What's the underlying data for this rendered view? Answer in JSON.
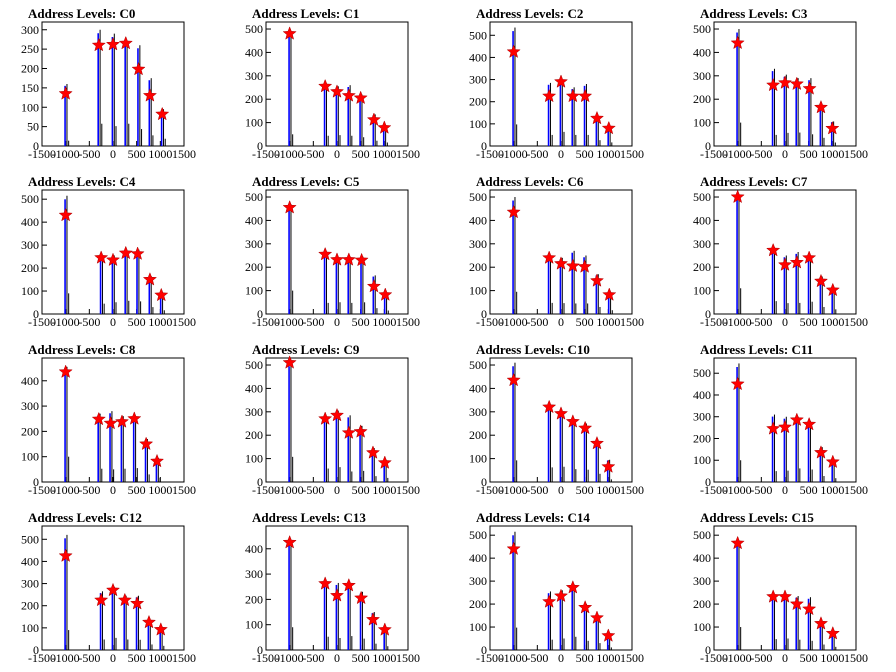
{
  "figure": {
    "xlim": [
      -1500,
      1500
    ],
    "xticks": [
      -1500,
      -1000,
      -500,
      0,
      500,
      1000,
      1500
    ],
    "xtick_labels": [
      "-1500",
      "-1000",
      "-500",
      "0",
      "500",
      "1000",
      "1500"
    ],
    "colors": {
      "marker": "#ff0000",
      "fit": "#0000ff",
      "hist": "#000000",
      "frame": "#000000"
    }
  },
  "chart_data": [
    {
      "type": "histogram",
      "title": "Address Levels: C0",
      "ylim": [
        0,
        320
      ],
      "yticks": [
        0,
        50,
        100,
        150,
        200,
        250,
        300
      ],
      "peaks": [
        {
          "x": -1000,
          "y": 135,
          "spike": 160,
          "base": 55
        },
        {
          "x": -300,
          "y": 260,
          "spike": 300,
          "base": 230
        },
        {
          "x": 0,
          "y": 262,
          "spike": 290,
          "base": 205
        },
        {
          "x": 270,
          "y": 265,
          "spike": 270,
          "base": 230
        },
        {
          "x": 540,
          "y": 198,
          "spike": 260,
          "base": 175
        },
        {
          "x": 780,
          "y": 130,
          "spike": 175,
          "base": 110
        },
        {
          "x": 1040,
          "y": 82,
          "spike": 95,
          "base": 75
        }
      ]
    },
    {
      "type": "histogram",
      "title": "Address Levels: C1",
      "ylim": [
        0,
        530
      ],
      "yticks": [
        0,
        100,
        200,
        300,
        400,
        500
      ],
      "peaks": [
        {
          "x": -1000,
          "y": 480,
          "spike": 490,
          "base": 200
        },
        {
          "x": -250,
          "y": 255,
          "spike": 260,
          "base": 175
        },
        {
          "x": 0,
          "y": 232,
          "spike": 255,
          "base": 185
        },
        {
          "x": 250,
          "y": 215,
          "spike": 260,
          "base": 175
        },
        {
          "x": 500,
          "y": 205,
          "spike": 220,
          "base": 150
        },
        {
          "x": 780,
          "y": 112,
          "spike": 135,
          "base": 90
        },
        {
          "x": 1000,
          "y": 78,
          "spike": 90,
          "base": 60
        }
      ]
    },
    {
      "type": "histogram",
      "title": "Address Levels: C2",
      "ylim": [
        0,
        560
      ],
      "yticks": [
        0,
        100,
        200,
        300,
        400,
        500
      ],
      "peaks": [
        {
          "x": -1000,
          "y": 425,
          "spike": 535,
          "base": 390
        },
        {
          "x": -250,
          "y": 225,
          "spike": 285,
          "base": 200
        },
        {
          "x": 0,
          "y": 290,
          "spike": 300,
          "base": 255
        },
        {
          "x": 250,
          "y": 225,
          "spike": 265,
          "base": 200
        },
        {
          "x": 510,
          "y": 225,
          "spike": 280,
          "base": 200
        },
        {
          "x": 760,
          "y": 125,
          "spike": 135,
          "base": 105
        },
        {
          "x": 1010,
          "y": 80,
          "spike": 90,
          "base": 65
        }
      ]
    },
    {
      "type": "histogram",
      "title": "Address Levels: C3",
      "ylim": [
        0,
        530
      ],
      "yticks": [
        0,
        100,
        200,
        300,
        400,
        500
      ],
      "peaks": [
        {
          "x": -1000,
          "y": 440,
          "spike": 500,
          "base": 400
        },
        {
          "x": -250,
          "y": 260,
          "spike": 330,
          "base": 190
        },
        {
          "x": 0,
          "y": 270,
          "spike": 305,
          "base": 225
        },
        {
          "x": 250,
          "y": 265,
          "spike": 290,
          "base": 230
        },
        {
          "x": 520,
          "y": 245,
          "spike": 290,
          "base": 200
        },
        {
          "x": 760,
          "y": 165,
          "spike": 175,
          "base": 140
        },
        {
          "x": 1000,
          "y": 75,
          "spike": 105,
          "base": 60
        }
      ]
    },
    {
      "type": "histogram",
      "title": "Address Levels: C4",
      "ylim": [
        0,
        540
      ],
      "yticks": [
        0,
        100,
        200,
        300,
        400,
        500
      ],
      "peaks": [
        {
          "x": -1000,
          "y": 430,
          "spike": 515,
          "base": 360
        },
        {
          "x": -250,
          "y": 245,
          "spike": 250,
          "base": 180
        },
        {
          "x": 0,
          "y": 235,
          "spike": 255,
          "base": 205
        },
        {
          "x": 270,
          "y": 265,
          "spike": 275,
          "base": 230
        },
        {
          "x": 520,
          "y": 262,
          "spike": 280,
          "base": 220
        },
        {
          "x": 780,
          "y": 150,
          "spike": 165,
          "base": 120
        },
        {
          "x": 1020,
          "y": 82,
          "spike": 95,
          "base": 65
        }
      ]
    },
    {
      "type": "histogram",
      "title": "Address Levels: C5",
      "ylim": [
        0,
        530
      ],
      "yticks": [
        0,
        100,
        200,
        300,
        400,
        500
      ],
      "peaks": [
        {
          "x": -1000,
          "y": 455,
          "spike": 470,
          "base": 400
        },
        {
          "x": -250,
          "y": 255,
          "spike": 260,
          "base": 190
        },
        {
          "x": 0,
          "y": 232,
          "spike": 240,
          "base": 200
        },
        {
          "x": 250,
          "y": 232,
          "spike": 245,
          "base": 190
        },
        {
          "x": 520,
          "y": 230,
          "spike": 245,
          "base": 200
        },
        {
          "x": 780,
          "y": 118,
          "spike": 165,
          "base": 100
        },
        {
          "x": 1020,
          "y": 82,
          "spike": 90,
          "base": 60
        }
      ]
    },
    {
      "type": "histogram",
      "title": "Address Levels: C6",
      "ylim": [
        0,
        530
      ],
      "yticks": [
        0,
        100,
        200,
        300,
        400,
        500
      ],
      "peaks": [
        {
          "x": -1000,
          "y": 435,
          "spike": 500,
          "base": 380
        },
        {
          "x": -250,
          "y": 240,
          "spike": 245,
          "base": 190
        },
        {
          "x": 0,
          "y": 215,
          "spike": 240,
          "base": 185
        },
        {
          "x": 250,
          "y": 205,
          "spike": 270,
          "base": 180
        },
        {
          "x": 500,
          "y": 202,
          "spike": 250,
          "base": 180
        },
        {
          "x": 760,
          "y": 142,
          "spike": 170,
          "base": 120
        },
        {
          "x": 1020,
          "y": 82,
          "spike": 95,
          "base": 65
        }
      ]
    },
    {
      "type": "histogram",
      "title": "Address Levels: C7",
      "ylim": [
        0,
        530
      ],
      "yticks": [
        0,
        100,
        200,
        300,
        400,
        500
      ],
      "peaks": [
        {
          "x": -1000,
          "y": 500,
          "spike": 510,
          "base": 440
        },
        {
          "x": -250,
          "y": 272,
          "spike": 285,
          "base": 220
        },
        {
          "x": 0,
          "y": 210,
          "spike": 250,
          "base": 185
        },
        {
          "x": 250,
          "y": 220,
          "spike": 265,
          "base": 190
        },
        {
          "x": 510,
          "y": 240,
          "spike": 250,
          "base": 210
        },
        {
          "x": 760,
          "y": 140,
          "spike": 160,
          "base": 120
        },
        {
          "x": 1010,
          "y": 102,
          "spike": 110,
          "base": 80
        }
      ]
    },
    {
      "type": "histogram",
      "title": "Address Levels: C8",
      "ylim": [
        0,
        490
      ],
      "yticks": [
        0,
        100,
        200,
        300,
        400
      ],
      "peaks": [
        {
          "x": -1000,
          "y": 435,
          "spike": 455,
          "base": 400
        },
        {
          "x": -300,
          "y": 248,
          "spike": 270,
          "base": 210
        },
        {
          "x": -50,
          "y": 232,
          "spike": 280,
          "base": 200
        },
        {
          "x": 190,
          "y": 238,
          "spike": 260,
          "base": 210
        },
        {
          "x": 450,
          "y": 250,
          "spike": 255,
          "base": 220
        },
        {
          "x": 700,
          "y": 150,
          "spike": 170,
          "base": 120
        },
        {
          "x": 930,
          "y": 82,
          "spike": 95,
          "base": 65
        }
      ]
    },
    {
      "type": "histogram",
      "title": "Address Levels: C9",
      "ylim": [
        0,
        530
      ],
      "yticks": [
        0,
        100,
        200,
        300,
        400,
        500
      ],
      "peaks": [
        {
          "x": -1000,
          "y": 510,
          "spike": 510,
          "base": 430
        },
        {
          "x": -250,
          "y": 270,
          "spike": 275,
          "base": 230
        },
        {
          "x": 0,
          "y": 285,
          "spike": 305,
          "base": 255
        },
        {
          "x": 250,
          "y": 210,
          "spike": 285,
          "base": 180
        },
        {
          "x": 500,
          "y": 215,
          "spike": 240,
          "base": 190
        },
        {
          "x": 760,
          "y": 125,
          "spike": 145,
          "base": 100
        },
        {
          "x": 1010,
          "y": 82,
          "spike": 95,
          "base": 70
        }
      ]
    },
    {
      "type": "histogram",
      "title": "Address Levels: C10",
      "ylim": [
        0,
        530
      ],
      "yticks": [
        0,
        100,
        200,
        300,
        400,
        500
      ],
      "peaks": [
        {
          "x": -1000,
          "y": 435,
          "spike": 510,
          "base": 370
        },
        {
          "x": -250,
          "y": 320,
          "spike": 325,
          "base": 250
        },
        {
          "x": 0,
          "y": 292,
          "spike": 300,
          "base": 260
        },
        {
          "x": 250,
          "y": 258,
          "spike": 270,
          "base": 220
        },
        {
          "x": 510,
          "y": 230,
          "spike": 250,
          "base": 210
        },
        {
          "x": 760,
          "y": 165,
          "spike": 175,
          "base": 140
        },
        {
          "x": 1000,
          "y": 65,
          "spike": 95,
          "base": 45
        }
      ]
    },
    {
      "type": "histogram",
      "title": "Address Levels: C11",
      "ylim": [
        0,
        570
      ],
      "yticks": [
        0,
        100,
        200,
        300,
        400,
        500
      ],
      "peaks": [
        {
          "x": -1000,
          "y": 450,
          "spike": 545,
          "base": 400
        },
        {
          "x": -250,
          "y": 245,
          "spike": 310,
          "base": 200
        },
        {
          "x": 0,
          "y": 252,
          "spike": 300,
          "base": 210
        },
        {
          "x": 250,
          "y": 285,
          "spike": 300,
          "base": 250
        },
        {
          "x": 510,
          "y": 265,
          "spike": 280,
          "base": 230
        },
        {
          "x": 760,
          "y": 135,
          "spike": 160,
          "base": 110
        },
        {
          "x": 1010,
          "y": 92,
          "spike": 100,
          "base": 70
        }
      ]
    },
    {
      "type": "histogram",
      "title": "Address Levels: C12",
      "ylim": [
        0,
        560
      ],
      "yticks": [
        0,
        100,
        200,
        300,
        400,
        500
      ],
      "peaks": [
        {
          "x": -1000,
          "y": 425,
          "spike": 520,
          "base": 360
        },
        {
          "x": -250,
          "y": 225,
          "spike": 265,
          "base": 190
        },
        {
          "x": 0,
          "y": 270,
          "spike": 285,
          "base": 220
        },
        {
          "x": 250,
          "y": 225,
          "spike": 245,
          "base": 190
        },
        {
          "x": 510,
          "y": 210,
          "spike": 245,
          "base": 185
        },
        {
          "x": 760,
          "y": 125,
          "spike": 135,
          "base": 100
        },
        {
          "x": 1010,
          "y": 92,
          "spike": 105,
          "base": 75
        }
      ]
    },
    {
      "type": "histogram",
      "title": "Address Levels: C13",
      "ylim": [
        0,
        490
      ],
      "yticks": [
        0,
        100,
        200,
        300,
        400
      ],
      "peaks": [
        {
          "x": -1000,
          "y": 425,
          "spike": 430,
          "base": 360
        },
        {
          "x": -250,
          "y": 262,
          "spike": 270,
          "base": 210
        },
        {
          "x": 0,
          "y": 215,
          "spike": 265,
          "base": 190
        },
        {
          "x": 250,
          "y": 255,
          "spike": 265,
          "base": 220
        },
        {
          "x": 510,
          "y": 205,
          "spike": 230,
          "base": 180
        },
        {
          "x": 760,
          "y": 120,
          "spike": 150,
          "base": 100
        },
        {
          "x": 1010,
          "y": 80,
          "spike": 85,
          "base": 60
        }
      ]
    },
    {
      "type": "histogram",
      "title": "Address Levels: C14",
      "ylim": [
        0,
        540
      ],
      "yticks": [
        0,
        100,
        200,
        300,
        400,
        500
      ],
      "peaks": [
        {
          "x": -1000,
          "y": 440,
          "spike": 515,
          "base": 390
        },
        {
          "x": -250,
          "y": 210,
          "spike": 255,
          "base": 180
        },
        {
          "x": 0,
          "y": 235,
          "spike": 260,
          "base": 200
        },
        {
          "x": 250,
          "y": 272,
          "spike": 285,
          "base": 230
        },
        {
          "x": 510,
          "y": 185,
          "spike": 200,
          "base": 160
        },
        {
          "x": 760,
          "y": 140,
          "spike": 150,
          "base": 120
        },
        {
          "x": 1000,
          "y": 62,
          "spike": 75,
          "base": 45
        }
      ]
    },
    {
      "type": "histogram",
      "title": "Address Levels: C15",
      "ylim": [
        0,
        540
      ],
      "yticks": [
        0,
        100,
        200,
        300,
        400,
        500
      ],
      "peaks": [
        {
          "x": -1000,
          "y": 465,
          "spike": 470,
          "base": 400
        },
        {
          "x": -250,
          "y": 232,
          "spike": 240,
          "base": 190
        },
        {
          "x": 0,
          "y": 232,
          "spike": 240,
          "base": 200
        },
        {
          "x": 250,
          "y": 200,
          "spike": 235,
          "base": 180
        },
        {
          "x": 510,
          "y": 178,
          "spike": 230,
          "base": 160
        },
        {
          "x": 760,
          "y": 115,
          "spike": 120,
          "base": 95
        },
        {
          "x": 1010,
          "y": 72,
          "spike": 80,
          "base": 55
        }
      ]
    }
  ]
}
